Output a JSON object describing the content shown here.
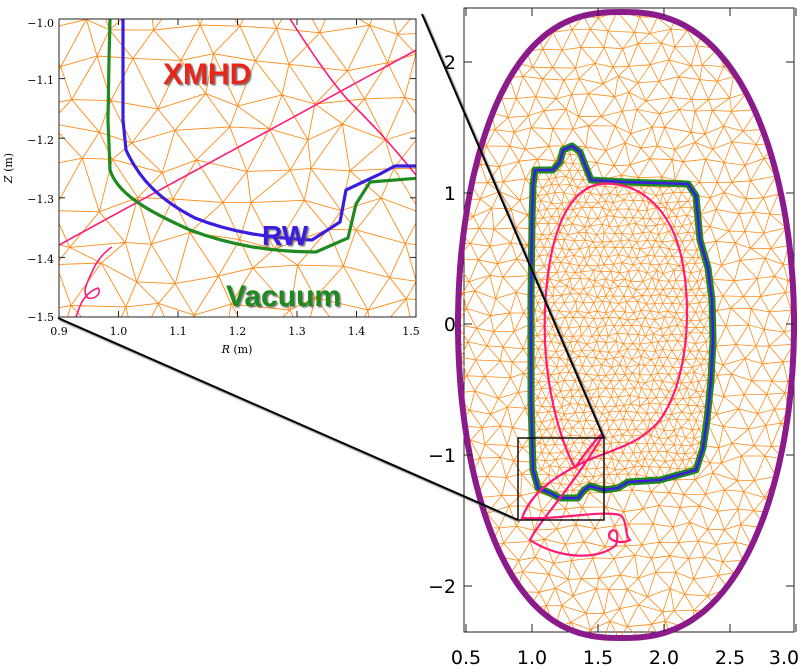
{
  "main_plot": {
    "x_ticks": [
      "0.5",
      "1.0",
      "1.5",
      "2.0",
      "2.5",
      "3.0"
    ],
    "y_ticks": [
      "2",
      "1",
      "0",
      "−1",
      "−2"
    ]
  },
  "inset": {
    "xlabel_italic": "R",
    "xlabel_unit": " (m)",
    "ylabel_italic": "Z",
    "ylabel_unit": " (m)",
    "x_ticks": [
      "0.9",
      "1.0",
      "1.1",
      "1.2",
      "1.3",
      "1.4",
      "1.5"
    ],
    "y_ticks": [
      "−1.0",
      "−1.1",
      "−1.2",
      "−1.3",
      "−1.4",
      "−1.5"
    ],
    "labels": {
      "xmhd": "XMHD",
      "rw": "RW",
      "vacuum": "Vacuum"
    }
  },
  "colors": {
    "mesh": "#ff8c1a",
    "outer_wall": "#8b1a8b",
    "resistive_wall": "#3a1ee0",
    "vacuum_boundary": "#1f8a1f",
    "separatrix": "#ff1a75",
    "xmhd_label": "#e8281e",
    "rw_label": "#3a1ee0",
    "vacuum_label": "#1f8a1f"
  }
}
